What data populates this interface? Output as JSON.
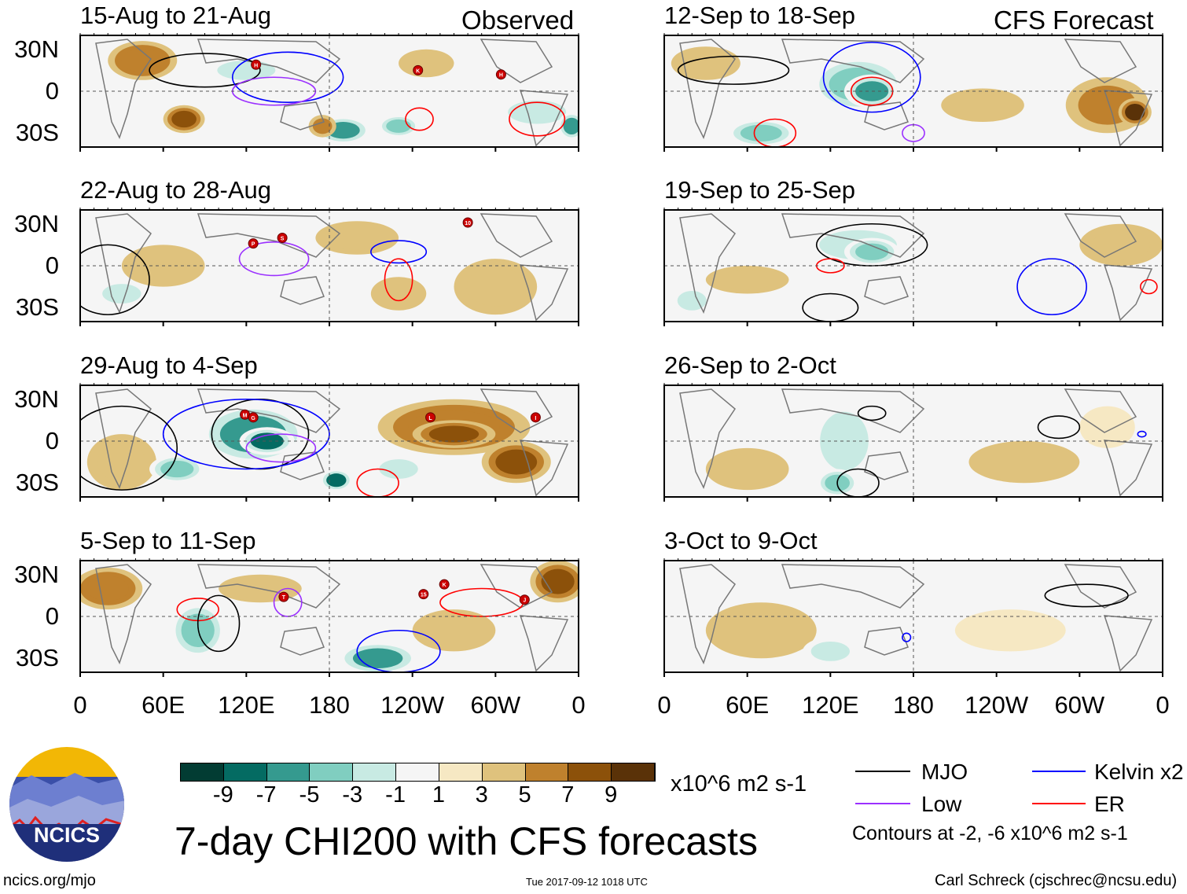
{
  "colors": {
    "levels": [
      "#023c33",
      "#046b62",
      "#359a8f",
      "#80cec0",
      "#c8eae3",
      "#f5f5f5",
      "#f6e8c3",
      "#dfc27d",
      "#bf812d",
      "#8c510a",
      "#5a3208"
    ],
    "mjo": "#000000",
    "kelvin": "#0000ff",
    "low": "#9b30ff",
    "er": "#ff0000",
    "coast": "#777777"
  },
  "chart_data": {
    "type": "heatmap",
    "title": "7-day CHI200 with CFS forecasts",
    "units": "x10^6 m2 s-1",
    "colorbar_ticks": [
      "-9",
      "-7",
      "-5",
      "-3",
      "-1",
      "1",
      "3",
      "5",
      "7",
      "9"
    ],
    "x_ticks": [
      "0",
      "60E",
      "120E",
      "180",
      "120W",
      "60W",
      "0"
    ],
    "y_ticks": [
      "30N",
      "0",
      "30S"
    ],
    "xlim": [
      0,
      360
    ],
    "ylim": [
      -40,
      40
    ],
    "column_labels": {
      "left": "Observed",
      "right": "CFS Forecast"
    },
    "panels": [
      {
        "title": "15-Aug to 21-Aug",
        "storms": [
          {
            "label": "H",
            "lon": 127,
            "lat": 19
          },
          {
            "label": "K",
            "lon": 244,
            "lat": 15
          },
          {
            "label": "H",
            "lon": 304,
            "lat": 12
          }
        ]
      },
      {
        "title": "22-Aug to 28-Aug",
        "storms": [
          {
            "label": "P",
            "lon": 125,
            "lat": 16
          },
          {
            "label": "S",
            "lon": 146,
            "lat": 20
          },
          {
            "label": "10",
            "lon": 280,
            "lat": 31
          }
        ]
      },
      {
        "title": "29-Aug to 4-Sep",
        "storms": [
          {
            "label": "M",
            "lon": 119,
            "lat": 19
          },
          {
            "label": "G",
            "lon": 125,
            "lat": 17
          },
          {
            "label": "L",
            "lon": 253,
            "lat": 17
          },
          {
            "label": "I",
            "lon": 329,
            "lat": 17
          }
        ]
      },
      {
        "title": "5-Sep to 11-Sep",
        "storms": [
          {
            "label": "T",
            "lon": 147,
            "lat": 14
          },
          {
            "label": "15",
            "lon": 248,
            "lat": 16
          },
          {
            "label": "K",
            "lon": 263,
            "lat": 23
          },
          {
            "label": "J",
            "lon": 321,
            "lat": 12
          }
        ]
      },
      {
        "title": "12-Sep to 18-Sep",
        "storms": []
      },
      {
        "title": "19-Sep to 25-Sep",
        "storms": []
      },
      {
        "title": "26-Sep to 2-Oct",
        "storms": []
      },
      {
        "title": "3-Oct to 9-Oct",
        "storms": []
      }
    ]
  },
  "legend": {
    "mjo": "MJO",
    "kelvin": "Kelvin x2",
    "low": "Low",
    "er": "ER",
    "contours_note": "Contours at -2, -6 x10^6 m2 s-1"
  },
  "logo": {
    "text": "NCICS"
  },
  "footer": {
    "url": "ncics.org/mjo",
    "timestamp": "Tue 2017-09-12 1018 UTC",
    "author": "Carl Schreck (cjschrec@ncsu.edu)"
  }
}
